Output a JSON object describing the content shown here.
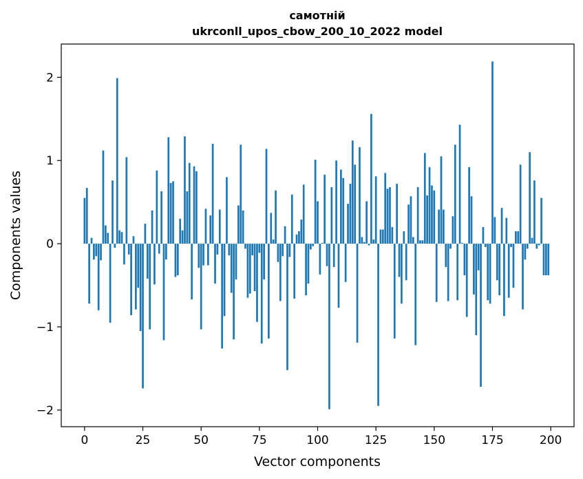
{
  "chart_data": {
    "type": "bar",
    "title_lines": [
      "самотній",
      "ukrconll_upos_cbow_200_10_2022 model"
    ],
    "xlabel": "Vector components",
    "ylabel": "Components values",
    "xlim": [
      -10,
      210
    ],
    "ylim": [
      -2.2,
      2.4
    ],
    "xticks": [
      0,
      25,
      50,
      75,
      100,
      125,
      150,
      175,
      200
    ],
    "yticks": [
      -2,
      -1,
      0,
      1,
      2
    ],
    "ytick_labels": [
      "−2",
      "−1",
      "0",
      "1",
      "2"
    ],
    "bar_color": "#1f77b4",
    "x": [
      0,
      1,
      2,
      3,
      4,
      5,
      6,
      7,
      8,
      9,
      10,
      11,
      12,
      13,
      14,
      15,
      16,
      17,
      18,
      19,
      20,
      21,
      22,
      23,
      24,
      25,
      26,
      27,
      28,
      29,
      30,
      31,
      32,
      33,
      34,
      35,
      36,
      37,
      38,
      39,
      40,
      41,
      42,
      43,
      44,
      45,
      46,
      47,
      48,
      49,
      50,
      51,
      52,
      53,
      54,
      55,
      56,
      57,
      58,
      59,
      60,
      61,
      62,
      63,
      64,
      65,
      66,
      67,
      68,
      69,
      70,
      71,
      72,
      73,
      74,
      75,
      76,
      77,
      78,
      79,
      80,
      81,
      82,
      83,
      84,
      85,
      86,
      87,
      88,
      89,
      90,
      91,
      92,
      93,
      94,
      95,
      96,
      97,
      98,
      99,
      100,
      101,
      102,
      103,
      104,
      105,
      106,
      107,
      108,
      109,
      110,
      111,
      112,
      113,
      114,
      115,
      116,
      117,
      118,
      119,
      120,
      121,
      122,
      123,
      124,
      125,
      126,
      127,
      128,
      129,
      130,
      131,
      132,
      133,
      134,
      135,
      136,
      137,
      138,
      139,
      140,
      141,
      142,
      143,
      144,
      145,
      146,
      147,
      148,
      149,
      150,
      151,
      152,
      153,
      154,
      155,
      156,
      157,
      158,
      159,
      160,
      161,
      162,
      163,
      164,
      165,
      166,
      167,
      168,
      169,
      170,
      171,
      172,
      173,
      174,
      175,
      176,
      177,
      178,
      179,
      180,
      181,
      182,
      183,
      184,
      185,
      186,
      187,
      188,
      189,
      190,
      191,
      192,
      193,
      194,
      195,
      196,
      197,
      198,
      199
    ],
    "values": [
      0.55,
      0.67,
      -0.72,
      0.07,
      -0.19,
      -0.15,
      -0.8,
      -0.2,
      1.12,
      0.22,
      0.13,
      -0.95,
      0.76,
      -0.05,
      1.99,
      0.16,
      0.14,
      -0.25,
      1.04,
      -0.13,
      -0.86,
      0.09,
      -0.79,
      -0.53,
      -1.05,
      -1.74,
      0.24,
      -0.42,
      -1.03,
      0.4,
      -0.49,
      0.88,
      -0.12,
      0.63,
      -1.16,
      -0.19,
      1.28,
      0.73,
      0.75,
      -0.4,
      -0.38,
      0.3,
      0.16,
      1.29,
      0.63,
      0.97,
      -0.67,
      0.93,
      0.87,
      -0.29,
      -1.03,
      -0.26,
      0.42,
      -0.26,
      0.34,
      1.2,
      -0.48,
      -0.13,
      0.41,
      -1.26,
      -0.87,
      0.8,
      -0.14,
      -0.59,
      -1.15,
      -0.43,
      0.46,
      1.19,
      0.4,
      -0.06,
      -0.65,
      -0.6,
      -0.14,
      -0.57,
      -0.94,
      -0.11,
      -1.2,
      -0.43,
      1.14,
      -1.14,
      0.37,
      0.05,
      0.64,
      -0.22,
      -0.69,
      -0.15,
      0.21,
      -1.52,
      -0.16,
      0.59,
      -0.66,
      0.11,
      0.15,
      0.29,
      0.71,
      -0.62,
      -0.48,
      -0.07,
      -0.03,
      1.01,
      0.51,
      -0.37,
      0.01,
      0.83,
      -0.27,
      -1.99,
      0.68,
      -0.28,
      1.0,
      -0.77,
      0.89,
      0.79,
      -0.46,
      0.48,
      0.72,
      1.24,
      0.95,
      -1.19,
      1.16,
      0.08,
      0.02,
      0.51,
      -0.02,
      1.56,
      0.05,
      0.81,
      -1.95,
      0.17,
      0.17,
      0.85,
      0.66,
      0.68,
      0.2,
      -1.14,
      0.72,
      -0.4,
      -0.72,
      0.15,
      -0.44,
      0.47,
      0.57,
      0.08,
      -1.22,
      0.68,
      0.04,
      0.04,
      1.09,
      0.58,
      0.92,
      0.7,
      0.64,
      -0.7,
      0.41,
      1.05,
      0.41,
      -0.28,
      -0.69,
      -0.06,
      0.33,
      1.19,
      -0.68,
      1.43,
      0.01,
      -0.38,
      -0.88,
      0.92,
      0.57,
      -0.61,
      -1.1,
      -0.32,
      -1.72,
      0.2,
      -0.04,
      -0.68,
      -0.72,
      2.19,
      0.32,
      -0.44,
      -0.62,
      0.43,
      -0.87,
      0.31,
      -0.65,
      -0.04,
      -0.53,
      0.15,
      0.15,
      0.95,
      -0.79,
      -0.19,
      -0.06,
      1.1,
      0.07,
      0.76,
      -0.06,
      -0.02,
      0.55,
      -0.38,
      -0.38,
      -0.38
    ]
  }
}
